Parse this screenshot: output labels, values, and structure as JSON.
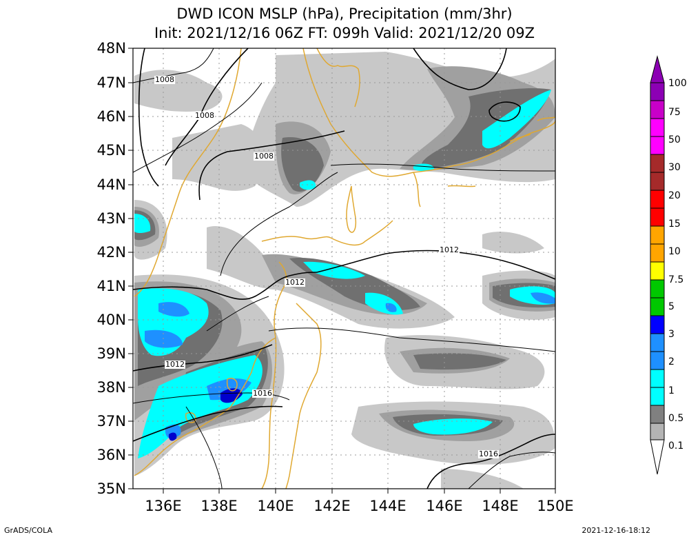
{
  "title": {
    "line1": "DWD ICON MSLP (hPa), Precipitation (mm/3hr)",
    "line2": "Init: 2021/12/16 06Z  FT: 099h  Valid: 2021/12/20 09Z"
  },
  "footer": {
    "credit": "GrADS/COLA",
    "timestamp": "2021-12-16-18:12"
  },
  "map": {
    "lat_labels": [
      "48N",
      "47N",
      "46N",
      "45N",
      "44N",
      "43N",
      "42N",
      "41N",
      "40N",
      "39N",
      "38N",
      "37N",
      "36N",
      "35N"
    ],
    "lon_labels": [
      "136E",
      "138E",
      "140E",
      "142E",
      "144E",
      "146E",
      "148E",
      "150E"
    ],
    "isobar_labels": [
      "1008",
      "1008",
      "1008",
      "1012",
      "1012",
      "1012",
      "1016",
      "1016"
    ],
    "colors": {
      "coast": "#e0a830",
      "isobar": "#000000",
      "grid": "#999999",
      "precip_0_1": "#c0c0c0",
      "precip_0_5": "#a0a0a0",
      "precip_1": "#707070",
      "precip_2": "#00ffff",
      "precip_3": "#1e90ff",
      "precip_5": "#0000cd"
    }
  },
  "colorbar": {
    "labels": [
      "100",
      "75",
      "50",
      "30",
      "20",
      "15",
      "10",
      "7.5",
      "5",
      "3",
      "2",
      "1",
      "0.5",
      "0.1"
    ],
    "colors": [
      "#8c00b4",
      "#c800c8",
      "#ff00ff",
      "#a52a2a",
      "#ff0000",
      "#ffa500",
      "#ffff00",
      "#00c800",
      "#0000ff",
      "#1e90ff",
      "#00ffff",
      "#808080",
      "#a0a0a0",
      "#c8c8c8"
    ]
  }
}
